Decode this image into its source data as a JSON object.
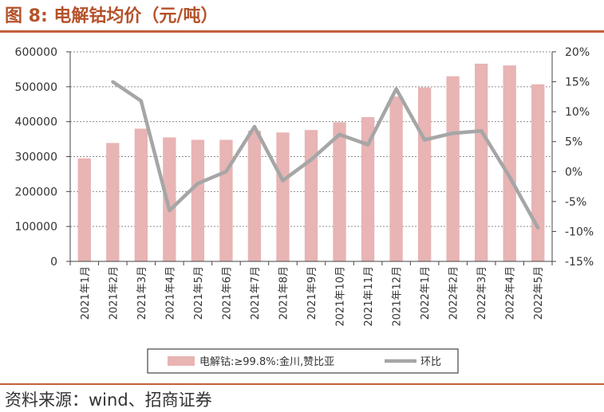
{
  "header": {
    "title": "图 8:  电解钴均价（元/吨）"
  },
  "footer": {
    "source": "资料来源：wind、招商证券"
  },
  "colors": {
    "bar": "#e8b4b4",
    "line": "#a6a6a6",
    "accent": "#b5522b"
  },
  "chart_data": {
    "type": "bar",
    "categories": [
      "2021年1月",
      "2021年2月",
      "2021年3月",
      "2021年4月",
      "2021年5月",
      "2021年6月",
      "2021年7月",
      "2021年8月",
      "2021年9月",
      "2021年10月",
      "2021年11月",
      "2021年12月",
      "2022年1月",
      "2022年2月",
      "2022年3月",
      "2022年4月",
      "2022年5月"
    ],
    "y_left": {
      "min": 0,
      "max": 600000,
      "ticks": [
        "0",
        "100000",
        "200000",
        "300000",
        "400000",
        "500000",
        "600000"
      ]
    },
    "y_right": {
      "min": -15,
      "max": 20,
      "ticks": [
        "-15%",
        "-10%",
        "-5%",
        "0%",
        "5%",
        "10%",
        "15%",
        "20%"
      ]
    },
    "grid": true,
    "legend_position": "bottom",
    "series": [
      {
        "name": "电解钴:≥99.8%:金川,赞比亚",
        "type": "bar",
        "axis": "left",
        "values": [
          295000,
          339000,
          380000,
          355000,
          348000,
          348000,
          374000,
          369000,
          376000,
          398000,
          413000,
          472000,
          498000,
          530000,
          566000,
          561000,
          507000
        ]
      },
      {
        "name": "环比",
        "type": "line",
        "axis": "right",
        "values": [
          null,
          15.0,
          11.8,
          -6.5,
          -2.0,
          0.0,
          7.5,
          -1.5,
          2.0,
          6.2,
          4.5,
          13.8,
          5.3,
          6.4,
          6.8,
          -0.9,
          -9.4
        ]
      }
    ]
  }
}
